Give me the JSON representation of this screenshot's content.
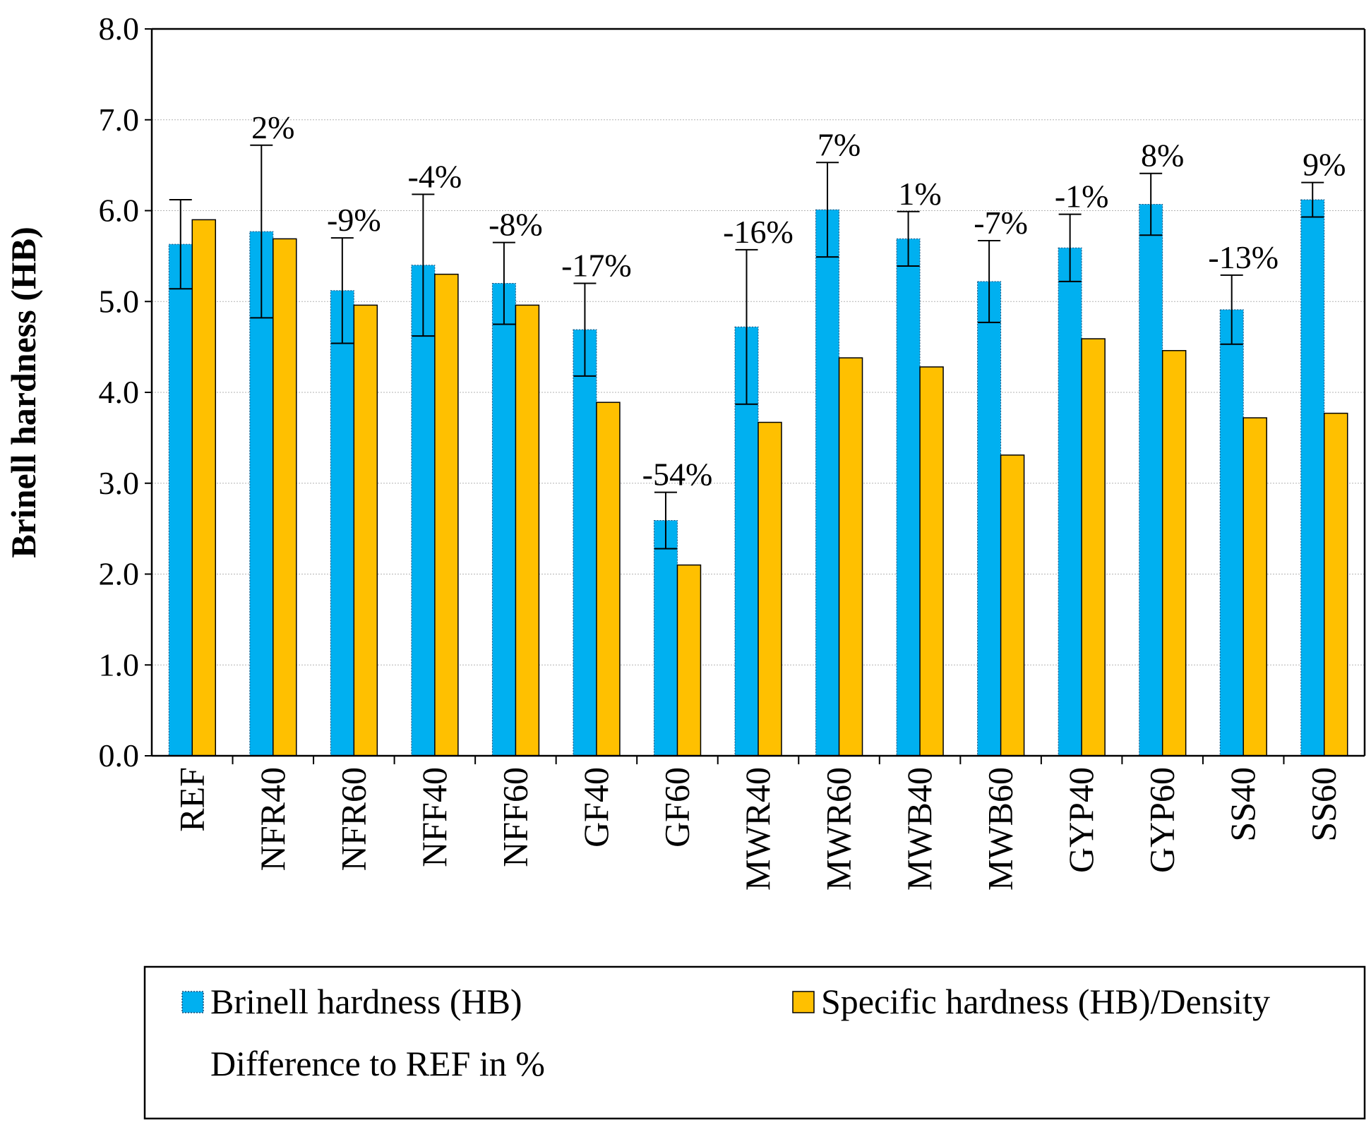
{
  "chart_data": {
    "type": "bar",
    "ylabel": "Brinell hardness (HB)",
    "ylim": [
      0,
      8
    ],
    "yticks": [
      "0.0",
      "1.0",
      "2.0",
      "3.0",
      "4.0",
      "5.0",
      "6.0",
      "7.0",
      "8.0"
    ],
    "grid": true,
    "legend_position": "bottom",
    "categories": [
      "REF",
      "NFR40",
      "NFR60",
      "NFF40",
      "NFF60",
      "GF40",
      "GF60",
      "MWR40",
      "MWR60",
      "MWB40",
      "MWB60",
      "GYP40",
      "GYP60",
      "SS40",
      "SS60"
    ],
    "series": [
      {
        "name": "Brinell hardness (HB)",
        "color": "#00B0F0",
        "values": [
          5.63,
          5.77,
          5.12,
          5.4,
          5.2,
          4.69,
          2.59,
          4.72,
          6.01,
          5.69,
          5.22,
          5.59,
          6.07,
          4.91,
          6.12
        ],
        "error": [
          0.49,
          0.95,
          0.58,
          0.78,
          0.45,
          0.51,
          0.31,
          0.85,
          0.52,
          0.3,
          0.45,
          0.37,
          0.34,
          0.38,
          0.19
        ]
      },
      {
        "name": "Specific hardness (HB)/Density",
        "color": "#FFC000",
        "values": [
          5.9,
          5.69,
          4.96,
          5.3,
          4.96,
          3.89,
          2.1,
          3.67,
          4.38,
          4.28,
          3.31,
          4.59,
          4.46,
          3.72,
          3.77
        ]
      }
    ],
    "annotations": [
      "",
      "2%",
      "-9%",
      "-4%",
      "-8%",
      "-17%",
      "-54%",
      "-16%",
      "7%",
      "1%",
      "-7%",
      "-1%",
      "8%",
      "-13%",
      "9%"
    ],
    "annotation_legend": "Difference to REF in %"
  }
}
